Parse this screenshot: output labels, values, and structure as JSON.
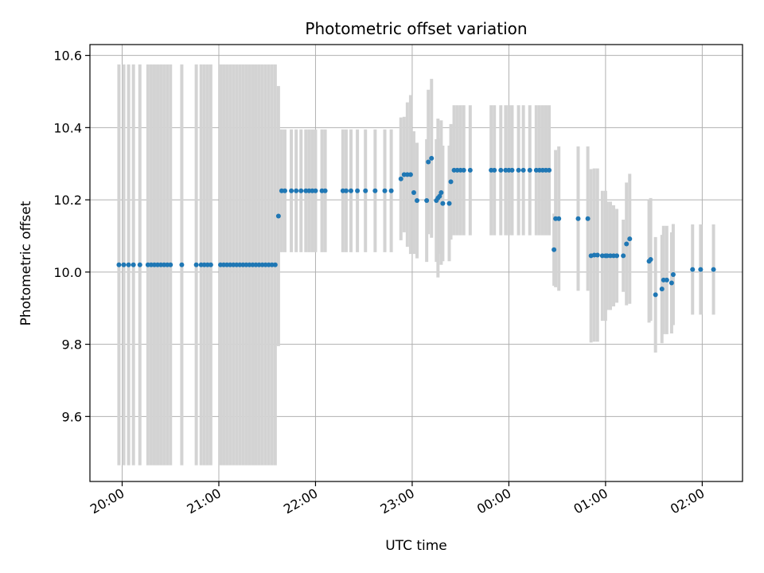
{
  "chart_data": {
    "type": "scatter",
    "title": "Photometric offset variation",
    "xlabel": "UTC time",
    "ylabel": "Photometric offset",
    "grid": true,
    "xlim": [
      "19:40",
      "02:25"
    ],
    "ylim": [
      9.42,
      10.63
    ],
    "x_ticks": [
      "20:00",
      "21:00",
      "22:00",
      "23:00",
      "00:00",
      "01:00",
      "02:00"
    ],
    "y_ticks": [
      9.6,
      9.8,
      10.0,
      10.2,
      10.4,
      10.6
    ],
    "colors": {
      "marker": "#1f77b4",
      "error_bar": "#d3d3d3",
      "grid": "#b0b0b0"
    },
    "series": [
      {
        "name": "",
        "points": [
          {
            "x": "19:58",
            "y": 10.02,
            "err": 0.555
          },
          {
            "x": "20:01",
            "y": 10.02,
            "err": 0.555
          },
          {
            "x": "20:04",
            "y": 10.02,
            "err": 0.555
          },
          {
            "x": "20:07",
            "y": 10.02,
            "err": 0.555
          },
          {
            "x": "20:11",
            "y": 10.02,
            "err": 0.555
          },
          {
            "x": "20:16",
            "y": 10.02,
            "err": 0.555
          },
          {
            "x": "20:18",
            "y": 10.02,
            "err": 0.555
          },
          {
            "x": "20:20",
            "y": 10.02,
            "err": 0.555
          },
          {
            "x": "20:22",
            "y": 10.02,
            "err": 0.555
          },
          {
            "x": "20:24",
            "y": 10.02,
            "err": 0.555
          },
          {
            "x": "20:26",
            "y": 10.02,
            "err": 0.555
          },
          {
            "x": "20:28",
            "y": 10.02,
            "err": 0.555
          },
          {
            "x": "20:30",
            "y": 10.02,
            "err": 0.555
          },
          {
            "x": "20:37",
            "y": 10.02,
            "err": 0.555
          },
          {
            "x": "20:46",
            "y": 10.02,
            "err": 0.555
          },
          {
            "x": "20:49",
            "y": 10.02,
            "err": 0.555
          },
          {
            "x": "20:51",
            "y": 10.02,
            "err": 0.555
          },
          {
            "x": "20:53",
            "y": 10.02,
            "err": 0.555
          },
          {
            "x": "20:55",
            "y": 10.02,
            "err": 0.555
          },
          {
            "x": "21:01",
            "y": 10.02,
            "err": 0.555
          },
          {
            "x": "21:03",
            "y": 10.02,
            "err": 0.555
          },
          {
            "x": "21:05",
            "y": 10.02,
            "err": 0.555
          },
          {
            "x": "21:07",
            "y": 10.02,
            "err": 0.555
          },
          {
            "x": "21:09",
            "y": 10.02,
            "err": 0.555
          },
          {
            "x": "21:11",
            "y": 10.02,
            "err": 0.555
          },
          {
            "x": "21:13",
            "y": 10.02,
            "err": 0.555
          },
          {
            "x": "21:15",
            "y": 10.02,
            "err": 0.555
          },
          {
            "x": "21:17",
            "y": 10.02,
            "err": 0.555
          },
          {
            "x": "21:19",
            "y": 10.02,
            "err": 0.555
          },
          {
            "x": "21:21",
            "y": 10.02,
            "err": 0.555
          },
          {
            "x": "21:23",
            "y": 10.02,
            "err": 0.555
          },
          {
            "x": "21:25",
            "y": 10.02,
            "err": 0.555
          },
          {
            "x": "21:27",
            "y": 10.02,
            "err": 0.555
          },
          {
            "x": "21:29",
            "y": 10.02,
            "err": 0.555
          },
          {
            "x": "21:31",
            "y": 10.02,
            "err": 0.555
          },
          {
            "x": "21:33",
            "y": 10.02,
            "err": 0.555
          },
          {
            "x": "21:35",
            "y": 10.02,
            "err": 0.555
          },
          {
            "x": "21:37",
            "y": 10.155,
            "err": 0.36
          },
          {
            "x": "21:39",
            "y": 10.225,
            "err": 0.17
          },
          {
            "x": "21:41",
            "y": 10.225,
            "err": 0.17
          },
          {
            "x": "21:45",
            "y": 10.225,
            "err": 0.17
          },
          {
            "x": "21:48",
            "y": 10.225,
            "err": 0.17
          },
          {
            "x": "21:51",
            "y": 10.225,
            "err": 0.17
          },
          {
            "x": "21:54",
            "y": 10.225,
            "err": 0.17
          },
          {
            "x": "21:56",
            "y": 10.225,
            "err": 0.17
          },
          {
            "x": "21:58",
            "y": 10.225,
            "err": 0.17
          },
          {
            "x": "22:00",
            "y": 10.225,
            "err": 0.17
          },
          {
            "x": "22:04",
            "y": 10.225,
            "err": 0.17
          },
          {
            "x": "22:06",
            "y": 10.225,
            "err": 0.17
          },
          {
            "x": "22:17",
            "y": 10.225,
            "err": 0.17
          },
          {
            "x": "22:19",
            "y": 10.225,
            "err": 0.17
          },
          {
            "x": "22:22",
            "y": 10.225,
            "err": 0.17
          },
          {
            "x": "22:26",
            "y": 10.225,
            "err": 0.17
          },
          {
            "x": "22:31",
            "y": 10.225,
            "err": 0.17
          },
          {
            "x": "22:37",
            "y": 10.225,
            "err": 0.17
          },
          {
            "x": "22:43",
            "y": 10.225,
            "err": 0.17
          },
          {
            "x": "22:47",
            "y": 10.225,
            "err": 0.17
          },
          {
            "x": "22:53",
            "y": 10.258,
            "err": 0.17
          },
          {
            "x": "22:55",
            "y": 10.27,
            "err": 0.16
          },
          {
            "x": "22:57",
            "y": 10.27,
            "err": 0.2
          },
          {
            "x": "22:59",
            "y": 10.27,
            "err": 0.22
          },
          {
            "x": "23:01",
            "y": 10.22,
            "err": 0.17
          },
          {
            "x": "23:03",
            "y": 10.198,
            "err": 0.16
          },
          {
            "x": "23:09",
            "y": 10.198,
            "err": 0.17
          },
          {
            "x": "23:10",
            "y": 10.305,
            "err": 0.2
          },
          {
            "x": "23:12",
            "y": 10.315,
            "err": 0.22
          },
          {
            "x": "23:15",
            "y": 10.198,
            "err": 0.17
          },
          {
            "x": "23:16",
            "y": 10.205,
            "err": 0.22
          },
          {
            "x": "23:17",
            "y": 10.21,
            "err": 0.16
          },
          {
            "x": "23:18",
            "y": 10.22,
            "err": 0.2
          },
          {
            "x": "23:19",
            "y": 10.19,
            "err": 0.16
          },
          {
            "x": "23:23",
            "y": 10.19,
            "err": 0.16
          },
          {
            "x": "23:24",
            "y": 10.25,
            "err": 0.16
          },
          {
            "x": "23:26",
            "y": 10.282,
            "err": 0.18
          },
          {
            "x": "23:28",
            "y": 10.282,
            "err": 0.18
          },
          {
            "x": "23:30",
            "y": 10.282,
            "err": 0.18
          },
          {
            "x": "23:32",
            "y": 10.282,
            "err": 0.18
          },
          {
            "x": "23:36",
            "y": 10.282,
            "err": 0.18
          },
          {
            "x": "23:49",
            "y": 10.282,
            "err": 0.18
          },
          {
            "x": "23:51",
            "y": 10.282,
            "err": 0.18
          },
          {
            "x": "23:55",
            "y": 10.282,
            "err": 0.18
          },
          {
            "x": "23:58",
            "y": 10.282,
            "err": 0.18
          },
          {
            "x": "00:00",
            "y": 10.282,
            "err": 0.18
          },
          {
            "x": "00:02",
            "y": 10.282,
            "err": 0.18
          },
          {
            "x": "00:06",
            "y": 10.282,
            "err": 0.18
          },
          {
            "x": "00:09",
            "y": 10.282,
            "err": 0.18
          },
          {
            "x": "00:13",
            "y": 10.282,
            "err": 0.18
          },
          {
            "x": "00:17",
            "y": 10.282,
            "err": 0.18
          },
          {
            "x": "00:19",
            "y": 10.282,
            "err": 0.18
          },
          {
            "x": "00:21",
            "y": 10.282,
            "err": 0.18
          },
          {
            "x": "00:23",
            "y": 10.282,
            "err": 0.18
          },
          {
            "x": "00:25",
            "y": 10.282,
            "err": 0.18
          },
          {
            "x": "00:28",
            "y": 10.062,
            "err": 0.1
          },
          {
            "x": "00:29",
            "y": 10.148,
            "err": 0.19
          },
          {
            "x": "00:31",
            "y": 10.148,
            "err": 0.2
          },
          {
            "x": "00:43",
            "y": 10.148,
            "err": 0.2
          },
          {
            "x": "00:49",
            "y": 10.148,
            "err": 0.2
          },
          {
            "x": "00:51",
            "y": 10.045,
            "err": 0.24
          },
          {
            "x": "00:53",
            "y": 10.047,
            "err": 0.24
          },
          {
            "x": "00:55",
            "y": 10.047,
            "err": 0.24
          },
          {
            "x": "00:58",
            "y": 10.045,
            "err": 0.18
          },
          {
            "x": "01:00",
            "y": 10.045,
            "err": 0.18
          },
          {
            "x": "01:01",
            "y": 10.045,
            "err": 0.15
          },
          {
            "x": "01:03",
            "y": 10.045,
            "err": 0.15
          },
          {
            "x": "01:05",
            "y": 10.045,
            "err": 0.14
          },
          {
            "x": "01:07",
            "y": 10.045,
            "err": 0.13
          },
          {
            "x": "01:11",
            "y": 10.045,
            "err": 0.1
          },
          {
            "x": "01:13",
            "y": 10.078,
            "err": 0.17
          },
          {
            "x": "01:15",
            "y": 10.092,
            "err": 0.18
          },
          {
            "x": "01:27",
            "y": 10.03,
            "err": 0.17
          },
          {
            "x": "01:28",
            "y": 10.035,
            "err": 0.17
          },
          {
            "x": "01:31",
            "y": 9.937,
            "err": 0.16
          },
          {
            "x": "01:35",
            "y": 9.953,
            "err": 0.15
          },
          {
            "x": "01:36",
            "y": 9.978,
            "err": 0.15
          },
          {
            "x": "01:38",
            "y": 9.978,
            "err": 0.15
          },
          {
            "x": "01:41",
            "y": 9.97,
            "err": 0.14
          },
          {
            "x": "01:42",
            "y": 9.993,
            "err": 0.14
          },
          {
            "x": "01:54",
            "y": 10.007,
            "err": 0.125
          },
          {
            "x": "01:59",
            "y": 10.007,
            "err": 0.125
          },
          {
            "x": "02:07",
            "y": 10.007,
            "err": 0.125
          }
        ]
      }
    ]
  }
}
